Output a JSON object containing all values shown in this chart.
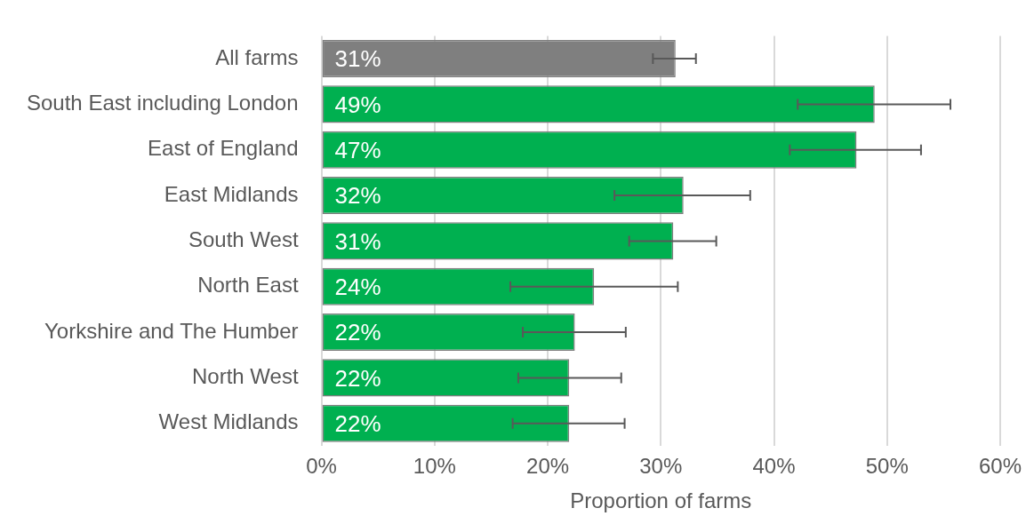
{
  "chart_data": {
    "type": "bar",
    "orientation": "horizontal",
    "xlabel": "Proportion of farms",
    "categories": [
      "All farms",
      "South East including London",
      "East of England",
      "East Midlands",
      "South West",
      "North East",
      "Yorkshire and The Humber",
      "North West",
      "West Midlands"
    ],
    "values": [
      31.3,
      48.9,
      47.3,
      32.0,
      31.1,
      24.1,
      22.4,
      21.9,
      21.9
    ],
    "colors": [
      "#7f7f7f",
      "#00b050",
      "#00b050",
      "#00b050",
      "#00b050",
      "#00b050",
      "#00b050",
      "#00b050",
      "#00b050"
    ],
    "errors": [
      [
        29.3,
        33.1
      ],
      [
        42.1,
        55.6
      ],
      [
        41.4,
        53.0
      ],
      [
        25.9,
        37.9
      ],
      [
        27.2,
        34.9
      ],
      [
        16.7,
        31.5
      ],
      [
        17.8,
        26.9
      ],
      [
        17.4,
        26.5
      ],
      [
        16.9,
        26.8
      ]
    ],
    "value_labels": [
      "31%",
      "49%",
      "47%",
      "32%",
      "31%",
      "24%",
      "22%",
      "22%",
      "22%"
    ],
    "xlim": [
      0,
      60
    ],
    "xticks": [
      {
        "value": 0,
        "label": "0%"
      },
      {
        "value": 10,
        "label": "10%"
      },
      {
        "value": 20,
        "label": "20%"
      },
      {
        "value": 30,
        "label": "30%"
      },
      {
        "value": 40,
        "label": "40%"
      },
      {
        "value": 50,
        "label": "50%"
      },
      {
        "value": 60,
        "label": "60%"
      }
    ],
    "grid": "x",
    "legend": false
  }
}
